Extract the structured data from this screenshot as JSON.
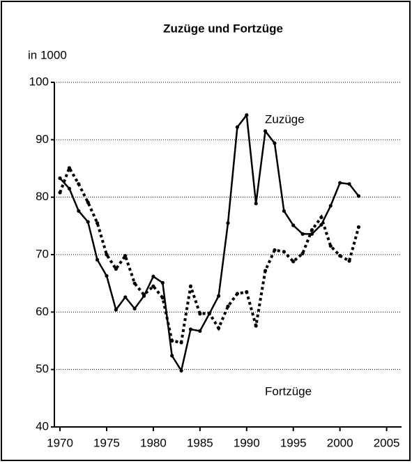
{
  "chart_data": {
    "type": "line",
    "title": "Zuzüge und Fortzüge",
    "y_label": "in 1000",
    "x": [
      1970,
      1971,
      1972,
      1973,
      1974,
      1975,
      1976,
      1977,
      1978,
      1979,
      1980,
      1981,
      1982,
      1983,
      1984,
      1985,
      1986,
      1987,
      1988,
      1989,
      1990,
      1991,
      1992,
      1993,
      1994,
      1995,
      1996,
      1997,
      1998,
      1999,
      2000,
      2001,
      2002
    ],
    "series": [
      {
        "name": "Zuzüge",
        "color": "#000000",
        "line_style": "solid",
        "values": [
          83.3,
          81.5,
          77.6,
          75.7,
          69.1,
          66.3,
          60.4,
          62.6,
          60.6,
          62.8,
          66.2,
          65.1,
          52.4,
          49.8,
          57,
          56.7,
          59.7,
          62.8,
          75.5,
          92.2,
          94.3,
          78.9,
          91.5,
          89.4,
          77.6,
          75.1,
          73.6,
          73.6,
          75.2,
          78.5,
          82.5,
          82.3,
          80.2
        ]
      },
      {
        "name": "Fortzüge",
        "color": "#000000",
        "line_style": "dotted",
        "values": [
          80.8,
          85.1,
          82.3,
          79.1,
          75.5,
          70,
          67.5,
          69.8,
          65,
          63,
          64.5,
          62.5,
          55,
          54.7,
          64.5,
          59.7,
          59.8,
          57.2,
          61,
          63.2,
          63.5,
          57.6,
          67.2,
          70.8,
          70.5,
          68.8,
          70.2,
          74.3,
          76.5,
          71.5,
          69.8,
          68.9,
          74.8
        ]
      }
    ],
    "xlim": [
      1969.4,
      2006
    ],
    "xticks": [
      1970,
      1975,
      1980,
      1985,
      1990,
      1995,
      2000,
      2005
    ],
    "ylim": [
      40,
      100
    ],
    "yticks": [
      40,
      50,
      60,
      70,
      80,
      90,
      100
    ],
    "grid": true
  }
}
